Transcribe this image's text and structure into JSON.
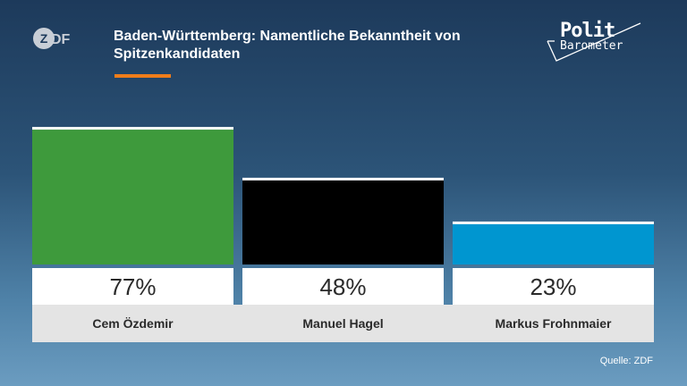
{
  "header": {
    "title": "Baden-Württemberg: Namentliche Bekanntheit von Spitzenkandidaten",
    "brand_logo": "ZDF",
    "program_logo_line1": "Polit",
    "program_logo_line2": "Barometer"
  },
  "colors": {
    "accent": "#f07d1a",
    "background_top": "#1d3a5b",
    "background_bottom": "#6b9cc0"
  },
  "chart_data": {
    "type": "bar",
    "categories": [
      "Cem Özdemir",
      "Manuel Hagel",
      "Markus Frohnmaier"
    ],
    "values": [
      77,
      48,
      23
    ],
    "value_labels": [
      "77%",
      "48%",
      "23%"
    ],
    "colors": [
      "#3e9a3c",
      "#000000",
      "#0096d0"
    ],
    "ylim": [
      0,
      100
    ],
    "grid": false,
    "legend": "none"
  },
  "footer": {
    "source": "Quelle: ZDF"
  }
}
